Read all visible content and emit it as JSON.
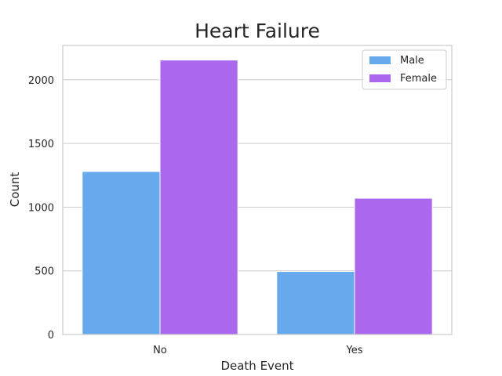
{
  "chart_data": {
    "type": "bar",
    "title": "Heart Failure",
    "xlabel": "Death Event",
    "ylabel": "Count",
    "categories": [
      "No",
      "Yes"
    ],
    "series": [
      {
        "name": "Male",
        "values": [
          1280,
          495
        ],
        "color": "#66aaed"
      },
      {
        "name": "Female",
        "values": [
          2155,
          1070
        ],
        "color": "#ab67ed"
      }
    ],
    "ylim": [
      0,
      2270
    ],
    "yticks": [
      0,
      500,
      1000,
      1500,
      2000
    ],
    "grid": "horizontal",
    "legend_position": "top-right"
  }
}
